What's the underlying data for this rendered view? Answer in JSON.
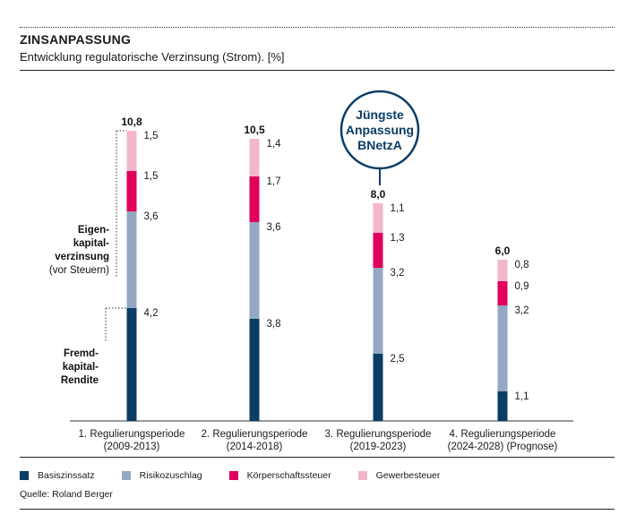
{
  "header": {
    "title": "ZINSANPASSUNG",
    "subtitle": "Entwicklung regulatorische Verzinsung (Strom). [%]"
  },
  "chart_data": {
    "type": "bar",
    "stacked": true,
    "title": "ZINSANPASSUNG",
    "subtitle": "Entwicklung regulatorische Verzinsung (Strom). [%]",
    "categories": [
      [
        "1. Regulierungsperiode",
        "(2009-2013)"
      ],
      [
        "2. Regulierungsperiode",
        "(2014-2018)"
      ],
      [
        "3. Regulierungsperiode",
        "(2019-2023)"
      ],
      [
        "4. Regulierungsperiode",
        "(2024-2028) (Prognose)"
      ]
    ],
    "series": [
      {
        "name": "Basiszinssatz",
        "color": "#0b3d66",
        "values": [
          4.2,
          3.8,
          2.5,
          1.1
        ],
        "labels": [
          "4,2",
          "3,8",
          "2,5",
          "1,1"
        ]
      },
      {
        "name": "Risikozuschlag",
        "color": "#94a8c4",
        "values": [
          3.6,
          3.6,
          3.2,
          3.2
        ],
        "labels": [
          "3,6",
          "3,6",
          "3,2",
          "3,2"
        ]
      },
      {
        "name": "Körperschaftssteuer",
        "color": "#e1005a",
        "values": [
          1.5,
          1.7,
          1.3,
          0.9
        ],
        "labels": [
          "1,5",
          "1,7",
          "1,3",
          "0,9"
        ]
      },
      {
        "name": "Gewerbesteuer",
        "color": "#f3b6cb",
        "values": [
          1.5,
          1.4,
          1.1,
          0.8
        ],
        "labels": [
          "1,5",
          "1,4",
          "1,1",
          "0,8"
        ]
      }
    ],
    "totals": [
      "10,8",
      "10,5",
      "8,0",
      "6,0"
    ],
    "ylim": [
      0,
      11
    ],
    "grid": false,
    "legend_position": "bottom-left",
    "annotations": {
      "callout": [
        "Jüngste",
        "Anpassung",
        "BNetzA"
      ],
      "equity_label": [
        "Eigen-",
        "kapital-",
        "verzinsung"
      ],
      "equity_sublabel": "(vor Steuern)",
      "debt_label": [
        "Fremd-",
        "kapital-",
        "Rendite"
      ]
    }
  },
  "source": "Quelle: Roland Berger"
}
